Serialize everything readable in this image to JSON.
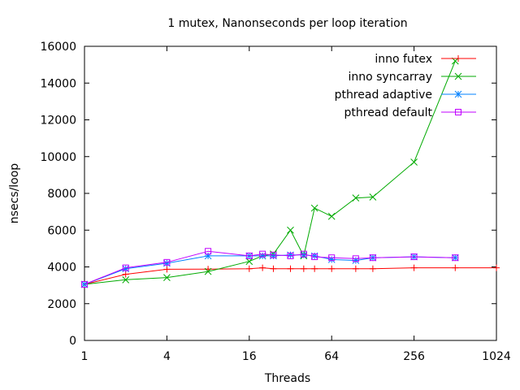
{
  "chart_data": {
    "type": "line",
    "title": "1 mutex, Nanonseconds per loop iteration",
    "xlabel": "Threads",
    "ylabel": "nsecs/loop",
    "xscale": "log2",
    "xlim": [
      1,
      1024
    ],
    "ylim": [
      0,
      16000
    ],
    "xticks": [
      1,
      4,
      16,
      64,
      256,
      1024
    ],
    "xtick_labels": [
      "1",
      "4",
      "16",
      "64",
      "256",
      "1024"
    ],
    "yticks": [
      0,
      2000,
      4000,
      6000,
      8000,
      10000,
      12000,
      14000,
      16000
    ],
    "ytick_labels": [
      "0",
      "2000",
      "4000",
      "6000",
      "8000",
      "10000",
      "12000",
      "14000",
      "16000"
    ],
    "grid": false,
    "legend_position": "top-right",
    "x": [
      1,
      2,
      4,
      8,
      16,
      20,
      24,
      32,
      40,
      48,
      64,
      96,
      128,
      256,
      512,
      1024
    ],
    "series": [
      {
        "name": "inno futex",
        "color": "#ff0000",
        "marker": "plus",
        "values": [
          3050,
          3600,
          3870,
          3880,
          3900,
          3950,
          3900,
          3900,
          3900,
          3900,
          3900,
          3900,
          3900,
          3950,
          3950,
          3950
        ]
      },
      {
        "name": "inno syncarray",
        "color": "#00aa00",
        "marker": "cross",
        "values": [
          3050,
          3300,
          3420,
          3750,
          4300,
          4600,
          4700,
          6000,
          4600,
          7200,
          6750,
          7750,
          7800,
          9700,
          15200,
          null
        ]
      },
      {
        "name": "pthread adaptive",
        "color": "#0080ff",
        "marker": "star",
        "values": [
          3050,
          3900,
          4200,
          4600,
          4600,
          4600,
          4600,
          4650,
          4650,
          4600,
          4400,
          4350,
          4500,
          4550,
          4500,
          null
        ]
      },
      {
        "name": "pthread default",
        "color": "#c000ff",
        "marker": "square",
        "values": [
          3050,
          3950,
          4250,
          4850,
          4600,
          4700,
          4650,
          4600,
          4700,
          4550,
          4500,
          4450,
          4500,
          4550,
          4500,
          null
        ]
      }
    ]
  }
}
